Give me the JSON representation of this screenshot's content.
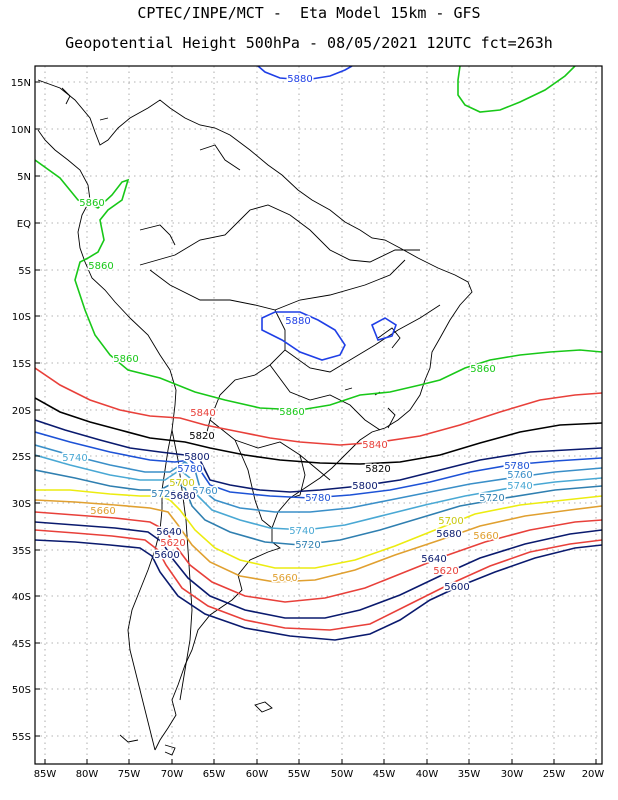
{
  "title_line1": "CPTEC/INPE/MCT -  Eta Model 15km - GFS",
  "title_line2": "Geopotential Height 500hPa - 08/05/2021 12UTC fct=263h",
  "lat_labels": [
    "15N",
    "10N",
    "5N",
    "EQ",
    "5S",
    "10S",
    "15S",
    "20S",
    "25S",
    "30S",
    "35S",
    "40S",
    "45S",
    "50S",
    "55S"
  ],
  "lon_labels": [
    "85W",
    "80W",
    "75W",
    "70W",
    "65W",
    "60W",
    "55W",
    "50W",
    "45W",
    "40W",
    "35W",
    "30W",
    "25W",
    "20W"
  ],
  "colors": {
    "c5880": "#1f3fe6",
    "c5860": "#18c818",
    "c5840": "#e8403a",
    "c5820": "#000000",
    "c5800": "#0a1a6e",
    "c5780": "#1d52d6",
    "c5760": "#3a8fc8",
    "c5740": "#49a8d4",
    "c5720": "#2f7fb0",
    "c5700": "#ecec10",
    "c5680": "#e0a030",
    "c5660": "#e8403a",
    "c5640": "#0a1a6e"
  },
  "contour_labels": {
    "l5880_top": "5880",
    "l5860_a": "5860",
    "l5860_b": "5860",
    "l5860_c": "5860",
    "l5860_d": "5860",
    "l5860_e": "5860",
    "l5880_mid": "5880",
    "l5840_a": "5840",
    "l5840_b": "5840",
    "l5820_a": "5820",
    "l5820_b": "5820",
    "l5740_w": "5740",
    "l5800_w": "5800",
    "l5700_w": "5700",
    "l5720_w": "5720",
    "l5780_w": "5780",
    "l5760_w": "5760",
    "l5680_w": "5680",
    "l5660_w": "5660",
    "l5640_w": "5640",
    "l5620_w": "5620",
    "l5600_w": "5600",
    "l5780_c": "5780",
    "l5800_c": "5800",
    "l5740_c": "5740",
    "l5720_c": "5720",
    "l5780_e": "5780",
    "l5760_e": "5760",
    "l5740_e": "5740",
    "l5720_e": "5720",
    "l5700_e": "5700",
    "l5680_e": "5680",
    "l5660_e": "5660",
    "l5640_e": "5640",
    "l5620_e": "5620",
    "l5600_e": "5600",
    "l5660_s": "5660"
  }
}
